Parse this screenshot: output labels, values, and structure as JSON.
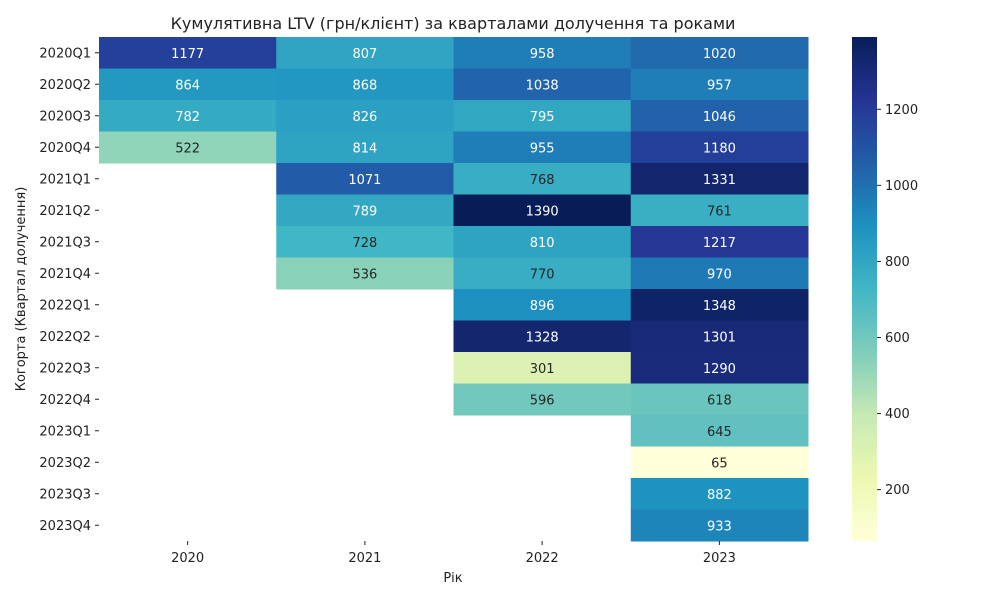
{
  "chart_data": {
    "type": "heatmap",
    "title": "Кумулятивна LTV (грн/клієнт) за кварталами долучення та роками",
    "xlabel": "Рік",
    "ylabel": "Когорта (Квартал долучення)",
    "x_categories": [
      "2020",
      "2021",
      "2022",
      "2023"
    ],
    "y_categories": [
      "2020Q1",
      "2020Q2",
      "2020Q3",
      "2020Q4",
      "2021Q1",
      "2021Q2",
      "2021Q3",
      "2021Q4",
      "2022Q1",
      "2022Q2",
      "2022Q3",
      "2022Q4",
      "2023Q1",
      "2023Q2",
      "2023Q3",
      "2023Q4"
    ],
    "values": [
      [
        1177,
        807,
        958,
        1020
      ],
      [
        864,
        868,
        1038,
        957
      ],
      [
        782,
        826,
        795,
        1046
      ],
      [
        522,
        814,
        955,
        1180
      ],
      [
        null,
        1071,
        768,
        1331
      ],
      [
        null,
        789,
        1390,
        761
      ],
      [
        null,
        728,
        810,
        1217
      ],
      [
        null,
        536,
        770,
        970
      ],
      [
        null,
        null,
        896,
        1348
      ],
      [
        null,
        null,
        1328,
        1301
      ],
      [
        null,
        null,
        301,
        1290
      ],
      [
        null,
        null,
        596,
        618
      ],
      [
        null,
        null,
        null,
        645
      ],
      [
        null,
        null,
        null,
        65
      ],
      [
        null,
        null,
        null,
        882
      ],
      [
        null,
        null,
        null,
        933
      ]
    ],
    "colormap": "YlGnBu",
    "vmin": 65,
    "vmax": 1390,
    "colorbar_ticks": [
      200,
      400,
      600,
      800,
      1000,
      1200
    ],
    "annotated": true,
    "grid": false
  }
}
